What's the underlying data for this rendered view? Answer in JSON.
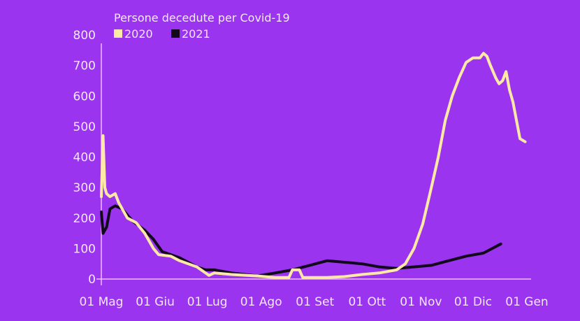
{
  "chart_data": {
    "type": "line",
    "title": "Persone decedute per Covid-19",
    "xlabel": "",
    "ylabel": "",
    "ylim": [
      0,
      800
    ],
    "yticks": [
      0,
      100,
      200,
      300,
      400,
      500,
      600,
      700,
      800
    ],
    "xticks": [
      {
        "day": 0,
        "label": "01 Mag"
      },
      {
        "day": 31,
        "label": "01 Giu"
      },
      {
        "day": 61,
        "label": "01 Lug"
      },
      {
        "day": 92,
        "label": "01 Ago"
      },
      {
        "day": 123,
        "label": "01 Set"
      },
      {
        "day": 153,
        "label": "01 Ott"
      },
      {
        "day": 184,
        "label": "01 Nov"
      },
      {
        "day": 214,
        "label": "01 Dic"
      },
      {
        "day": 245,
        "label": "01 Gen"
      }
    ],
    "xlim": [
      0,
      245
    ],
    "grid": false,
    "legend": "top-left",
    "series": [
      {
        "name": "2020",
        "color": "#ffe9a6",
        "points": [
          [
            0,
            270
          ],
          [
            1,
            470
          ],
          [
            2,
            300
          ],
          [
            3,
            280
          ],
          [
            5,
            270
          ],
          [
            8,
            280
          ],
          [
            10,
            250
          ],
          [
            15,
            200
          ],
          [
            20,
            185
          ],
          [
            25,
            150
          ],
          [
            30,
            100
          ],
          [
            33,
            80
          ],
          [
            40,
            75
          ],
          [
            45,
            60
          ],
          [
            55,
            40
          ],
          [
            60,
            20
          ],
          [
            62,
            12
          ],
          [
            65,
            20
          ],
          [
            75,
            15
          ],
          [
            90,
            10
          ],
          [
            100,
            5
          ],
          [
            108,
            5
          ],
          [
            110,
            30
          ],
          [
            114,
            30
          ],
          [
            116,
            5
          ],
          [
            130,
            5
          ],
          [
            140,
            8
          ],
          [
            150,
            15
          ],
          [
            160,
            20
          ],
          [
            170,
            30
          ],
          [
            175,
            50
          ],
          [
            180,
            100
          ],
          [
            185,
            180
          ],
          [
            190,
            300
          ],
          [
            194,
            400
          ],
          [
            198,
            520
          ],
          [
            202,
            600
          ],
          [
            206,
            660
          ],
          [
            210,
            710
          ],
          [
            214,
            725
          ],
          [
            218,
            725
          ],
          [
            220,
            740
          ],
          [
            222,
            730
          ],
          [
            224,
            700
          ],
          [
            227,
            660
          ],
          [
            229,
            640
          ],
          [
            231,
            650
          ],
          [
            233,
            680
          ],
          [
            235,
            620
          ],
          [
            237,
            580
          ],
          [
            239,
            520
          ],
          [
            241,
            460
          ],
          [
            244,
            450
          ]
        ]
      },
      {
        "name": "2021",
        "color": "#120a1c",
        "points": [
          [
            0,
            220
          ],
          [
            1,
            150
          ],
          [
            3,
            170
          ],
          [
            5,
            230
          ],
          [
            8,
            240
          ],
          [
            12,
            230
          ],
          [
            18,
            190
          ],
          [
            25,
            160
          ],
          [
            30,
            130
          ],
          [
            35,
            90
          ],
          [
            45,
            70
          ],
          [
            55,
            40
          ],
          [
            60,
            30
          ],
          [
            65,
            30
          ],
          [
            75,
            20
          ],
          [
            90,
            10
          ],
          [
            100,
            20
          ],
          [
            110,
            30
          ],
          [
            120,
            45
          ],
          [
            130,
            60
          ],
          [
            140,
            55
          ],
          [
            150,
            50
          ],
          [
            160,
            40
          ],
          [
            170,
            35
          ],
          [
            180,
            40
          ],
          [
            190,
            45
          ],
          [
            200,
            60
          ],
          [
            210,
            75
          ],
          [
            220,
            85
          ],
          [
            225,
            100
          ],
          [
            230,
            115
          ]
        ]
      }
    ]
  }
}
